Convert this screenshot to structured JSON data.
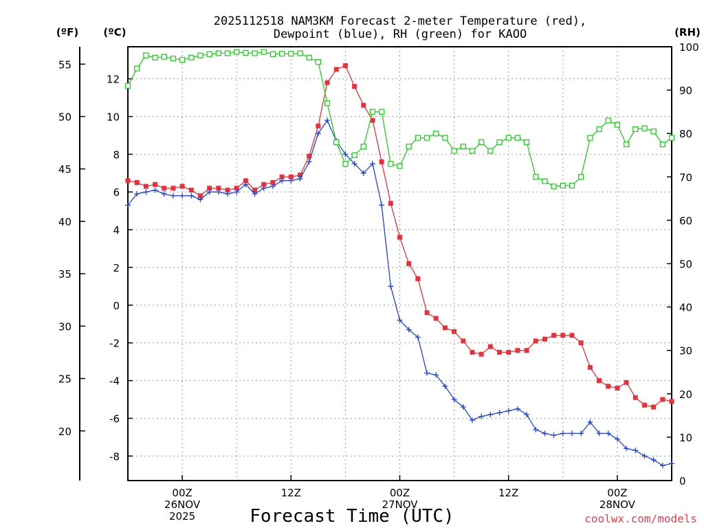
{
  "chart_data": {
    "type": "line",
    "title_line1": "2025112518 NAM3KM Forecast 2-meter Temperature (red),",
    "title_line2": "Dewpoint (blue), RH (green) for KAOO",
    "xlabel": "Forecast Time (UTC)",
    "credit": "coolwx.com/models",
    "axis_units": {
      "fahrenheit": "(ºF)",
      "celsius": "(ºC)",
      "rh": "(RH)"
    },
    "x_unit": "forecast hours from 2025112518",
    "xlim": [
      0,
      60
    ],
    "ylim_celsius": [
      -9.3,
      13.7
    ],
    "ylim_rh": [
      0,
      100
    ],
    "celsius_ticks": [
      -8,
      -6,
      -4,
      -2,
      0,
      2,
      4,
      6,
      8,
      10,
      12
    ],
    "fahrenheit_ticks": [
      20,
      25,
      30,
      35,
      40,
      45,
      50,
      55
    ],
    "rh_ticks": [
      0,
      10,
      20,
      30,
      40,
      50,
      60,
      70,
      80,
      90,
      100
    ],
    "x_ticks": [
      {
        "hour": 6,
        "lines": [
          "00Z",
          "26NOV",
          "2025"
        ]
      },
      {
        "hour": 18,
        "lines": [
          "12Z"
        ]
      },
      {
        "hour": 30,
        "lines": [
          "00Z",
          "27NOV"
        ]
      },
      {
        "hour": 42,
        "lines": [
          "12Z"
        ]
      },
      {
        "hour": 54,
        "lines": [
          "00Z",
          "28NOV"
        ]
      }
    ],
    "grid_x_hours": [
      6,
      12,
      18,
      24,
      30,
      36,
      42,
      48,
      54
    ],
    "series": [
      {
        "name": "Temperature",
        "unit": "celsius",
        "color": "#e8313a",
        "marker": "filled-square",
        "x": [
          0,
          1,
          2,
          3,
          4,
          5,
          6,
          7,
          8,
          9,
          10,
          11,
          12,
          13,
          14,
          15,
          16,
          17,
          18,
          19,
          20,
          21,
          22,
          23,
          24,
          25,
          26,
          27,
          28,
          29,
          30,
          31,
          32,
          33,
          34,
          35,
          36,
          37,
          38,
          39,
          40,
          41,
          42,
          43,
          44,
          45,
          46,
          47,
          48,
          49,
          50,
          51,
          52,
          53,
          54,
          55,
          56,
          57,
          58,
          59,
          60
        ],
        "values": [
          6.6,
          6.5,
          6.3,
          6.4,
          6.2,
          6.2,
          6.3,
          6.1,
          5.8,
          6.2,
          6.2,
          6.1,
          6.2,
          6.6,
          6.1,
          6.4,
          6.5,
          6.8,
          6.8,
          6.9,
          7.9,
          9.5,
          11.8,
          12.5,
          12.7,
          11.6,
          10.6,
          9.8,
          7.6,
          5.4,
          3.6,
          2.2,
          1.4,
          -0.4,
          -0.7,
          -1.2,
          -1.4,
          -1.9,
          -2.5,
          -2.6,
          -2.2,
          -2.5,
          -2.5,
          -2.4,
          -2.4,
          -1.9,
          -1.8,
          -1.6,
          -1.6,
          -1.6,
          -2.0,
          -3.3,
          -4.0,
          -4.3,
          -4.4,
          -4.1,
          -4.9,
          -5.3,
          -5.4,
          -5.0,
          -5.1
        ]
      },
      {
        "name": "Dewpoint",
        "unit": "celsius",
        "color": "#2040e0",
        "marker": "plus",
        "x": [
          0,
          1,
          2,
          3,
          4,
          5,
          6,
          7,
          8,
          9,
          10,
          11,
          12,
          13,
          14,
          15,
          16,
          17,
          18,
          19,
          20,
          21,
          22,
          23,
          24,
          25,
          26,
          27,
          28,
          29,
          30,
          31,
          32,
          33,
          34,
          35,
          36,
          37,
          38,
          39,
          40,
          41,
          42,
          43,
          44,
          45,
          46,
          47,
          48,
          49,
          50,
          51,
          52,
          53,
          54,
          55,
          56,
          57,
          58,
          59,
          60
        ],
        "values": [
          5.3,
          5.9,
          6.0,
          6.1,
          5.9,
          5.8,
          5.8,
          5.8,
          5.6,
          6.0,
          6.0,
          5.9,
          6.0,
          6.4,
          5.9,
          6.2,
          6.3,
          6.6,
          6.6,
          6.7,
          7.6,
          9.1,
          9.8,
          8.7,
          8.0,
          7.5,
          7.0,
          7.5,
          5.3,
          1.0,
          -0.8,
          -1.3,
          -1.7,
          -3.6,
          -3.7,
          -4.3,
          -5.0,
          -5.4,
          -6.1,
          -5.9,
          -5.8,
          -5.7,
          -5.6,
          -5.5,
          -5.8,
          -6.6,
          -6.8,
          -6.9,
          -6.8,
          -6.8,
          -6.8,
          -6.2,
          -6.8,
          -6.8,
          -7.1,
          -7.6,
          -7.7,
          -8.0,
          -8.2,
          -8.5,
          -8.4
        ]
      },
      {
        "name": "RH",
        "unit": "rh",
        "color": "#20d020",
        "marker": "open-square",
        "x": [
          0,
          1,
          2,
          3,
          4,
          5,
          6,
          7,
          8,
          9,
          10,
          11,
          12,
          13,
          14,
          15,
          16,
          17,
          18,
          19,
          20,
          21,
          22,
          23,
          24,
          25,
          26,
          27,
          28,
          29,
          30,
          31,
          32,
          33,
          34,
          35,
          36,
          37,
          38,
          39,
          40,
          41,
          42,
          43,
          44,
          45,
          46,
          47,
          48,
          49,
          50,
          51,
          52,
          53,
          54,
          55,
          56,
          57,
          58,
          59,
          60
        ],
        "values": [
          91,
          95,
          98,
          97.5,
          97.7,
          97.3,
          97,
          97.5,
          98,
          98.3,
          98.5,
          98.5,
          98.8,
          98.6,
          98.5,
          98.8,
          98.3,
          98.4,
          98.4,
          98.5,
          97.5,
          96.5,
          87,
          78,
          73,
          75,
          77,
          85,
          85,
          73,
          72.5,
          77,
          79,
          79,
          80,
          79,
          76,
          77,
          76,
          78,
          76,
          78,
          79,
          79,
          78,
          70,
          69,
          67.8,
          68,
          68,
          70,
          79,
          81,
          83,
          82,
          77.5,
          81,
          81.2,
          80.5,
          77.5,
          79
        ]
      }
    ]
  }
}
